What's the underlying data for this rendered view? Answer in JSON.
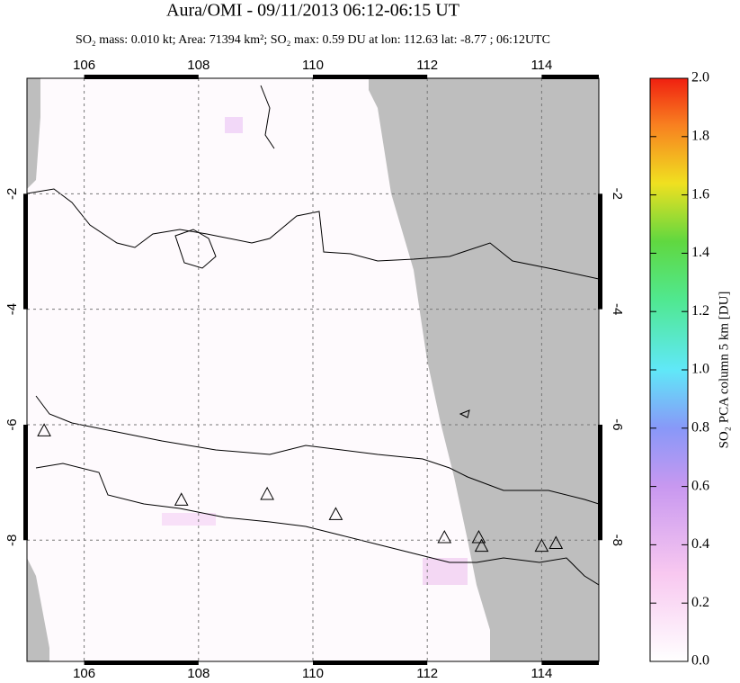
{
  "map": {
    "title": "Aura/OMI - 09/11/2013 06:12-06:15 UT",
    "subtitle": "SO₂ mass: 0.010 kt; Area: 71394 km²; SO₂ max: 0.59 DU at lon: 112.63 lat: -8.77 ; 06:12UTC",
    "xlim": [
      105,
      115
    ],
    "ylim": [
      -10.1,
      0
    ],
    "xticks": [
      106,
      108,
      110,
      112,
      114
    ],
    "yticks": [
      -2,
      -4,
      -6,
      -8
    ],
    "volcanoes": {
      "lon": [
        105.3,
        107.7,
        109.2,
        110.4,
        112.3,
        112.9,
        112.95,
        114.0,
        114.25
      ],
      "lat": [
        -6.1,
        -7.3,
        -7.2,
        -7.55,
        -7.95,
        -7.95,
        -8.1,
        -8.1,
        -8.05
      ]
    },
    "colorbar": {
      "label": "SO₂ PCA column 5 km [DU]",
      "ylim": [
        0,
        2
      ],
      "yticks": [
        {
          "value": 0,
          "label": "0.0"
        },
        {
          "value": 0.2,
          "label": "0.2"
        },
        {
          "value": 0.4,
          "label": "0.4"
        },
        {
          "value": 0.6,
          "label": "0.6"
        },
        {
          "value": 0.8,
          "label": "0.8"
        },
        {
          "value": 1,
          "label": "1.0"
        },
        {
          "value": 1.2,
          "label": "1.2"
        },
        {
          "value": 1.4,
          "label": "1.4"
        },
        {
          "value": 1.6,
          "label": "1.6"
        },
        {
          "value": 1.8,
          "label": "1.8"
        },
        {
          "value": 2,
          "label": "2.0"
        }
      ]
    }
  }
}
